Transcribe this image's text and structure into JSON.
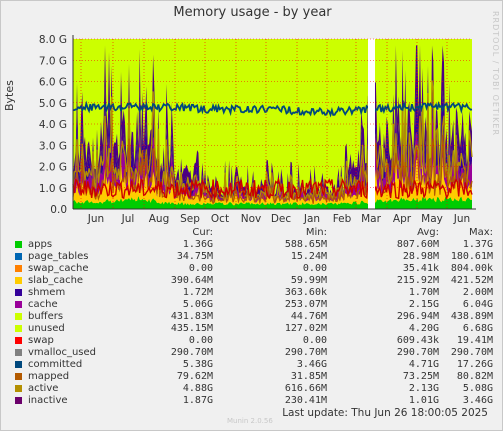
{
  "title": "Memory usage - by year",
  "ylabel": "Bytes",
  "side_text": "RRDTOOL / TOBI OETIKER",
  "footer_brand": "Munin 2.0.56",
  "last_update": "Last update: Thu Jun 26 18:00:05 2025",
  "colors": {
    "plot_bg": "#ccff00",
    "background": "#f0f0f0",
    "grid": "#ff0000"
  },
  "chart_data": {
    "type": "area",
    "title": "Memory usage - by year",
    "ylabel": "Bytes",
    "ylim": [
      0,
      8
    ],
    "ytick_unit": "G",
    "yticks": [
      "0.0",
      "1.0 G",
      "2.0 G",
      "3.0 G",
      "4.0 G",
      "5.0 G",
      "6.0 G",
      "7.0 G",
      "8.0 G"
    ],
    "xticks": [
      "Jun",
      "Jul",
      "Aug",
      "Sep",
      "Oct",
      "Nov",
      "Dec",
      "Jan",
      "Feb",
      "Mar",
      "Apr",
      "May",
      "Jun"
    ],
    "data_gap": "early Mar",
    "grid": true,
    "series_approx_profile": {
      "stack_base_G": [
        0.35,
        0.35,
        0.5,
        0.25,
        0.25,
        0.25,
        0.25,
        0.25,
        0.25,
        0.35,
        0.45,
        0.45,
        0.45
      ],
      "stack_top_G": [
        3.8,
        5.5,
        6.0,
        3.5,
        1.6,
        1.6,
        1.8,
        1.6,
        1.6,
        4.5,
        6.0,
        5.8,
        5.5
      ],
      "committed_G": [
        4.8,
        4.8,
        4.8,
        4.8,
        4.7,
        4.7,
        4.7,
        4.6,
        4.6,
        4.7,
        4.8,
        4.8,
        4.8
      ]
    },
    "legend_headers": [
      "",
      "Cur:",
      "Min:",
      "Avg:",
      "Max:"
    ],
    "series": [
      {
        "name": "apps",
        "color": "#00cc00",
        "cur": "1.36G",
        "min": "588.65M",
        "avg": "807.60M",
        "max": "1.37G"
      },
      {
        "name": "page_tables",
        "color": "#0066b3",
        "cur": "34.75M",
        "min": "15.24M",
        "avg": "28.98M",
        "max": "180.61M"
      },
      {
        "name": "swap_cache",
        "color": "#ff8000",
        "cur": "0.00",
        "min": "0.00",
        "avg": "35.41k",
        "max": "804.00k"
      },
      {
        "name": "slab_cache",
        "color": "#ffcc00",
        "cur": "390.64M",
        "min": "59.99M",
        "avg": "215.92M",
        "max": "421.52M"
      },
      {
        "name": "shmem",
        "color": "#330099",
        "cur": "1.72M",
        "min": "363.60k",
        "avg": "1.70M",
        "max": "2.00M"
      },
      {
        "name": "cache",
        "color": "#990099",
        "cur": "5.06G",
        "min": "253.07M",
        "avg": "2.15G",
        "max": "6.04G"
      },
      {
        "name": "buffers",
        "color": "#ccff00",
        "cur": "431.83M",
        "min": "44.76M",
        "avg": "296.94M",
        "max": "438.89M"
      },
      {
        "name": "unused",
        "color": "#ccff00",
        "cur": "435.15M",
        "min": "127.02M",
        "avg": "4.20G",
        "max": "6.68G"
      },
      {
        "name": "swap",
        "color": "#ff0000",
        "cur": "0.00",
        "min": "0.00",
        "avg": "609.43k",
        "max": "19.41M"
      },
      {
        "name": "vmalloc_used",
        "color": "#808080",
        "cur": "290.70M",
        "min": "290.70M",
        "avg": "290.70M",
        "max": "290.70M"
      },
      {
        "name": "committed",
        "color": "#008f00",
        "cur": "5.38G",
        "min": "3.46G",
        "avg": "4.71G",
        "max": "17.26G"
      },
      {
        "name": "mapped",
        "color": "#00487d",
        "cur": "79.62M",
        "min": "31.85M",
        "avg": "73.25M",
        "max": "80.82M"
      },
      {
        "name": "active",
        "color": "#b35a00",
        "cur": "4.88G",
        "min": "616.66M",
        "avg": "2.13G",
        "max": "5.08G"
      },
      {
        "name": "inactive",
        "color": "#b38f00",
        "cur": "1.87G",
        "min": "230.41M",
        "avg": "1.01G",
        "max": "3.46G"
      }
    ],
    "series_legend_swatch_override": {
      "committed": "#00487d",
      "mapped": "#b35a00",
      "active": "#b38f00",
      "inactive": "#6b006b"
    }
  }
}
